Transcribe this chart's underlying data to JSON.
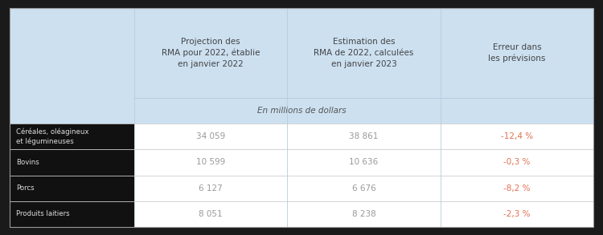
{
  "header_bg": "#cce0f0",
  "subheader_bg": "#daeaf6",
  "row_bg": "#ffffff",
  "black_label_bg": "#111111",
  "outer_bg": "#1a1a1a",
  "col_headers": [
    "Projection des\nRMA pour 2022, établie\nen janvier 2022",
    "Estimation des\nRMA de 2022, calculées\nen janvier 2023",
    "Erreur dans\nles prévisions"
  ],
  "subheader": "En millions de dollars",
  "rows": [
    {
      "label": "Céréales, oléagineux\net légumineuses",
      "col1": "34 059",
      "col2": "38 861",
      "col3": "-12,4 %",
      "col3_color": "#e07050"
    },
    {
      "label": "Bovins",
      "col1": "10 599",
      "col2": "10 636",
      "col3": "-0,3 %",
      "col3_color": "#e07050"
    },
    {
      "label": "Porcs",
      "col1": "6 127",
      "col2": "6 676",
      "col3": "-8,2 %",
      "col3_color": "#e07050"
    },
    {
      "label": "Produits laitiers",
      "col1": "8 051",
      "col2": "8 238",
      "col3": "-2,3 %",
      "col3_color": "#e07050"
    }
  ],
  "data_text_color": "#999999",
  "label_text_color": "#dddddd",
  "header_text_color": "#444444",
  "subheader_text_color": "#555555",
  "divider_color": "#cccccc",
  "outer_border_color": "#999999"
}
